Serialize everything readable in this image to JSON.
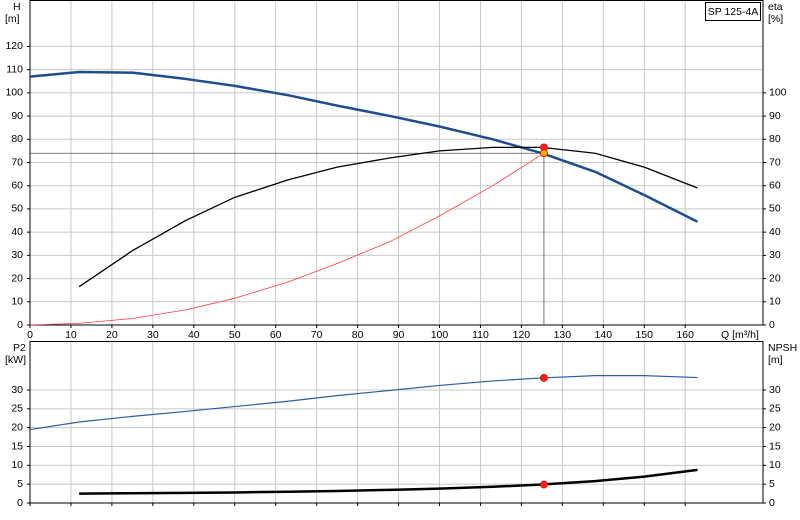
{
  "chart_data": [
    {
      "type": "line",
      "title": "SP 125-4A",
      "y_label": [
        "H",
        "[m]"
      ],
      "y2_label": [
        "eta",
        "[%]"
      ],
      "x_label": "Q [m³/h]",
      "xlim": [
        0,
        179
      ],
      "xticks": [
        0,
        10,
        20,
        30,
        40,
        50,
        60,
        70,
        80,
        90,
        100,
        110,
        120,
        130,
        140,
        150,
        160
      ],
      "ylim": [
        0,
        140
      ],
      "yticks": [
        0,
        10,
        20,
        30,
        40,
        50,
        60,
        70,
        80,
        90,
        100,
        110,
        120
      ],
      "y2lim": [
        0,
        140
      ],
      "y2ticks": [
        0,
        10,
        20,
        30,
        40,
        50,
        60,
        70,
        80,
        90,
        100
      ],
      "grid": true,
      "show_xtick_labels": true,
      "series": [
        {
          "color": "#1f4e8c",
          "width": 2.5,
          "x": [
            0,
            12,
            25,
            38,
            50,
            63,
            75,
            88,
            100,
            113,
            125,
            138,
            150,
            163
          ],
          "values": [
            107,
            109,
            108.7,
            106,
            103,
            99,
            94.5,
            90,
            85.5,
            80,
            74,
            66,
            56,
            44.5
          ]
        },
        {
          "color": "#000000",
          "width": 1.3,
          "axis": "y2",
          "x": [
            12,
            25,
            38,
            50,
            63,
            75,
            88,
            100,
            113,
            125,
            138,
            150,
            163
          ],
          "values": [
            16.5,
            32,
            45,
            55,
            62.5,
            68,
            72,
            75,
            76.5,
            76.5,
            74,
            68,
            59
          ]
        },
        {
          "color": "#ff3b3b",
          "width": 0.8,
          "x": [
            0,
            12,
            25,
            38,
            50,
            63,
            75,
            88,
            100,
            113,
            125.5
          ],
          "values": [
            0,
            0.7,
            2.8,
            6.5,
            11.5,
            18.5,
            26.5,
            36,
            47,
            60,
            74
          ]
        }
      ],
      "duty_point": {
        "x": 125.5,
        "y": 74
      },
      "points": [
        {
          "x": 125.5,
          "y": 76.5,
          "color": "#ff2020",
          "axis": "y2"
        },
        {
          "x": 125.5,
          "y": 74,
          "color": "#f5b400"
        }
      ]
    },
    {
      "type": "line",
      "y_label": [
        "P2",
        "[kW]"
      ],
      "y2_label": [
        "NPSH",
        "[m]"
      ],
      "xlim": [
        0,
        179
      ],
      "xticks": [
        0,
        10,
        20,
        30,
        40,
        50,
        60,
        70,
        80,
        90,
        100,
        110,
        120,
        130,
        140,
        150,
        160
      ],
      "ylim": [
        0,
        43
      ],
      "yticks": [
        0,
        5,
        10,
        15,
        20,
        25,
        30
      ],
      "y2lim": [
        0,
        43
      ],
      "y2ticks": [
        0,
        5,
        10,
        15,
        20,
        25,
        30
      ],
      "grid": true,
      "show_xtick_labels": false,
      "series": [
        {
          "color": "#2a5fa0",
          "width": 1.2,
          "x": [
            0,
            12,
            25,
            38,
            50,
            63,
            75,
            88,
            100,
            113,
            125,
            138,
            150,
            163
          ],
          "values": [
            19.5,
            21.5,
            23,
            24.3,
            25.6,
            27,
            28.5,
            29.9,
            31.2,
            32.4,
            33.2,
            33.8,
            33.8,
            33.3
          ]
        },
        {
          "color": "#000000",
          "width": 2.5,
          "axis": "y2",
          "x": [
            12,
            25,
            38,
            50,
            63,
            75,
            88,
            100,
            113,
            125,
            138,
            150,
            163
          ],
          "values": [
            2.5,
            2.6,
            2.7,
            2.8,
            3,
            3.2,
            3.5,
            3.8,
            4.3,
            4.9,
            5.8,
            7,
            8.8
          ]
        }
      ],
      "points": [
        {
          "x": 125.5,
          "y": 33.2,
          "color": "#ff2020"
        },
        {
          "x": 125.5,
          "y": 4.9,
          "color": "#ff2020",
          "axis": "y2"
        }
      ]
    }
  ]
}
